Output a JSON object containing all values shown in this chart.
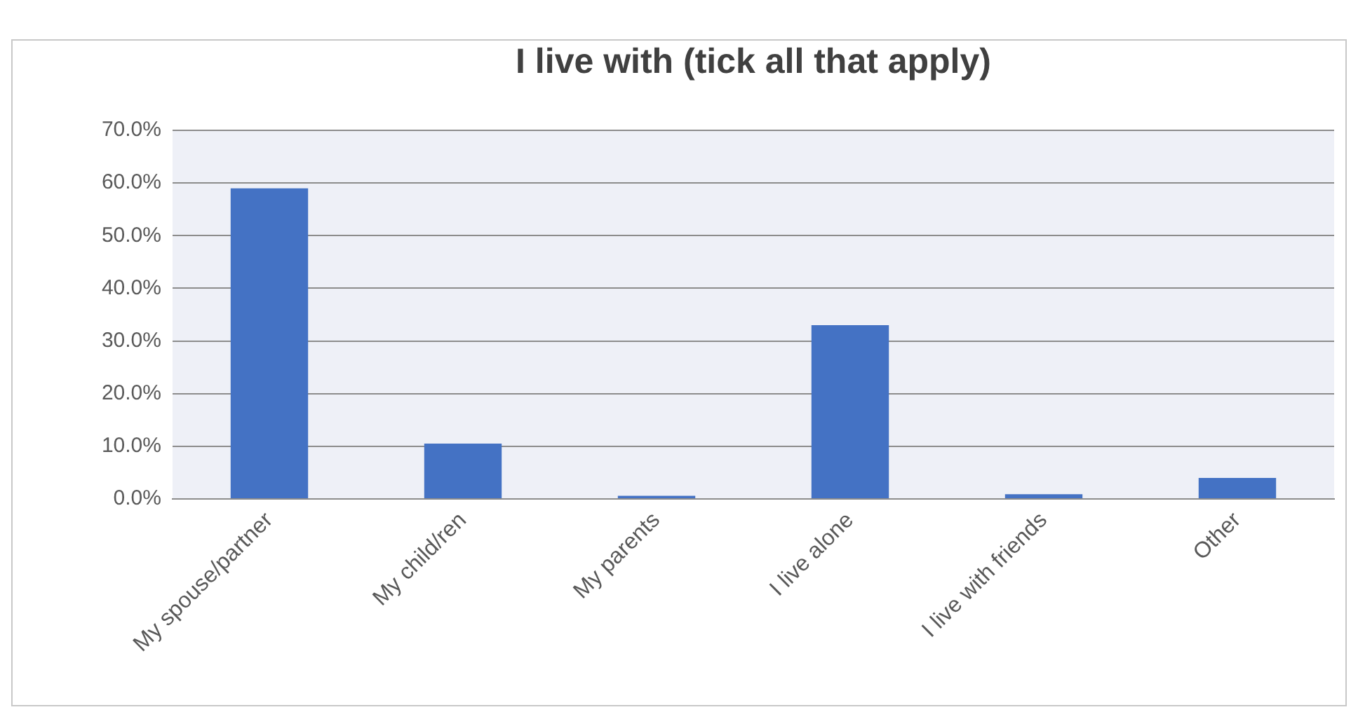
{
  "chart_data": {
    "type": "bar",
    "title": "I live with (tick all that apply)",
    "categories": [
      "My spouse/partner",
      "My child/ren",
      "My parents",
      "I live alone",
      "I live with friends",
      "Other"
    ],
    "values": [
      59.0,
      10.5,
      0.6,
      33.0,
      0.9,
      4.0
    ],
    "color": "#4472c4",
    "ylim": [
      0,
      70
    ],
    "yticks": [
      {
        "value": 0,
        "label": "0.0%"
      },
      {
        "value": 10,
        "label": "10.0%"
      },
      {
        "value": 20,
        "label": "20.0%"
      },
      {
        "value": 30,
        "label": "30.0%"
      },
      {
        "value": 40,
        "label": "40.0%"
      },
      {
        "value": 50,
        "label": "50.0%"
      },
      {
        "value": 60,
        "label": "60.0%"
      },
      {
        "value": 70,
        "label": "70.0%"
      }
    ],
    "grid": "y"
  }
}
